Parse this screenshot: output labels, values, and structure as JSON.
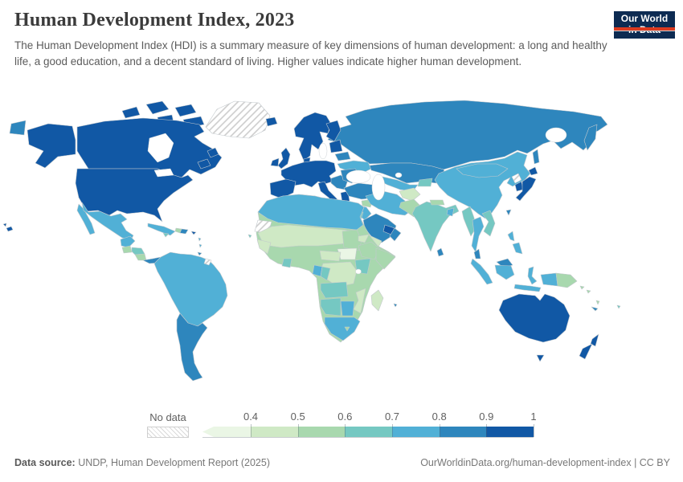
{
  "header": {
    "title": "Human Development Index, 2023",
    "subtitle": "The Human Development Index (HDI) is a summary measure of key dimensions of human development: a long and healthy life, a good education, and a decent standard of living. Higher values indicate higher human development.",
    "logo": {
      "line1": "Our World",
      "line2": "in Data",
      "bg_color": "#0d2b52",
      "accent_color": "#dc3a1f"
    }
  },
  "legend": {
    "no_data_label": "No data",
    "tick_labels": [
      "0.4",
      "0.5",
      "0.6",
      "0.7",
      "0.8",
      "0.9",
      "1"
    ],
    "buckets": [
      {
        "range": "< 0.4",
        "color": "#eaf6e5"
      },
      {
        "range": "0.4 – 0.5",
        "color": "#cfe9c5"
      },
      {
        "range": "0.5 – 0.6",
        "color": "#a8d8ae"
      },
      {
        "range": "0.6 – 0.7",
        "color": "#75c8c2"
      },
      {
        "range": "0.7 – 0.8",
        "color": "#51b0d6"
      },
      {
        "range": "0.8 – 0.9",
        "color": "#2e86bd"
      },
      {
        "range": "0.9 – 1",
        "color": "#1158a5"
      }
    ]
  },
  "map": {
    "water_color": "#ffffff",
    "fills": {
      "no_data": [
        "greenland",
        "western-sahara",
        "french-guiana",
        "north-korea"
      ],
      "by_bucket": [
        [
          "south-sudan"
        ],
        [
          "sahel",
          "senegal-guinea",
          "eritrea",
          "central-african-republic",
          "dr-congo",
          "mozambique",
          "madagascar",
          "yemen",
          "afghanistan"
        ],
        [
          "africa-base",
          "guatemala",
          "nicaragua",
          "haiti",
          "sudan",
          "ethiopia",
          "somalia",
          "lesotho",
          "nepal",
          "syria",
          "pakistan",
          "papua-new-guinea",
          "solomon-islands",
          "vanuatu"
        ],
        [
          "honduras",
          "jamaica",
          "ghana",
          "congo",
          "kenya",
          "angola",
          "namibia",
          "kyrgyzstan-tajikistan",
          "india",
          "jordan",
          "myanmar",
          "indochina",
          "fiji",
          "cape-verde"
        ],
        [
          "mexico",
          "cuba",
          "lesser-antilles",
          "south-america",
          "ukraine",
          "uzbekistan-turkmenistan",
          "china",
          "mongolia",
          "iran",
          "iraq",
          "north-africa",
          "gabon",
          "botswana",
          "south-africa",
          "bangladesh",
          "thailand",
          "indonesia",
          "philippines"
        ],
        [
          "russia",
          "kazakhstan",
          "turkey",
          "saudi-arabia",
          "oman",
          "balkans",
          "romania-bulgaria",
          "belarus",
          "argentina-chile",
          "costa-rica-panama",
          "dominican-republic",
          "trinidad",
          "sri-lanka",
          "malaysia",
          "taiwan",
          "new-caledonia",
          "mauritius"
        ],
        [
          "canada",
          "usa",
          "iceland",
          "ireland",
          "uk",
          "scandinavia",
          "finland",
          "baltics",
          "denmark",
          "western-europe",
          "iberia",
          "italy",
          "greece",
          "south-korea",
          "japan",
          "gulf-states",
          "israel",
          "australia",
          "new-zealand",
          "puerto-rico"
        ]
      ]
    }
  },
  "footer": {
    "source_label": "Data source:",
    "source_text": " UNDP, Human Development Report (2025)",
    "right_text": "OurWorldinData.org/human-development-index | CC BY"
  }
}
